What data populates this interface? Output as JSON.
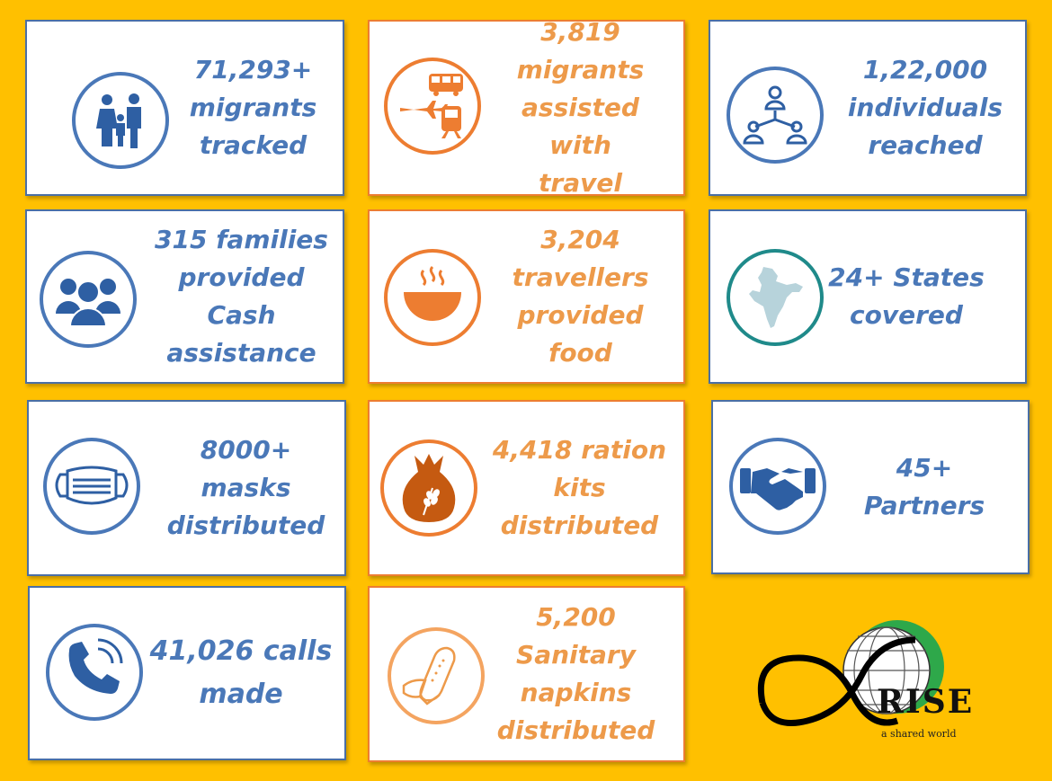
{
  "cards": [
    {
      "text": "71,293+\nmigrants\ntracked",
      "icon": "family-icon"
    },
    {
      "text": "3,819\nmigrants\nassisted with\ntravel",
      "icon": "travel-icon"
    },
    {
      "text": "1,22,000\nindividuals\nreached",
      "icon": "network-icon"
    },
    {
      "text": "315 families\nprovided  Cash\nassistance",
      "icon": "group-icon"
    },
    {
      "text": "3,204\ntravellers\nprovided food",
      "icon": "food-bowl-icon"
    },
    {
      "text": "24+ States\ncovered",
      "icon": "india-map-icon"
    },
    {
      "text": "8000+\nmasks\ndistributed",
      "icon": "mask-icon"
    },
    {
      "text": "4,418 ration\nkits\ndistributed",
      "icon": "ration-bag-icon"
    },
    {
      "text": "45+\nPartners",
      "icon": "handshake-icon"
    },
    {
      "text": "41,026 calls\nmade",
      "icon": "phone-icon"
    },
    {
      "text": "5,200\nSanitary\nnapkins\ndistributed",
      "icon": "napkin-icon"
    }
  ],
  "logo": {
    "name": "RISE",
    "tagline": "a shared world"
  },
  "colors": {
    "background": "#FFC000",
    "blue": "#4A78B8",
    "orange": "#ED7D31",
    "teal": "#1F8A8A"
  }
}
